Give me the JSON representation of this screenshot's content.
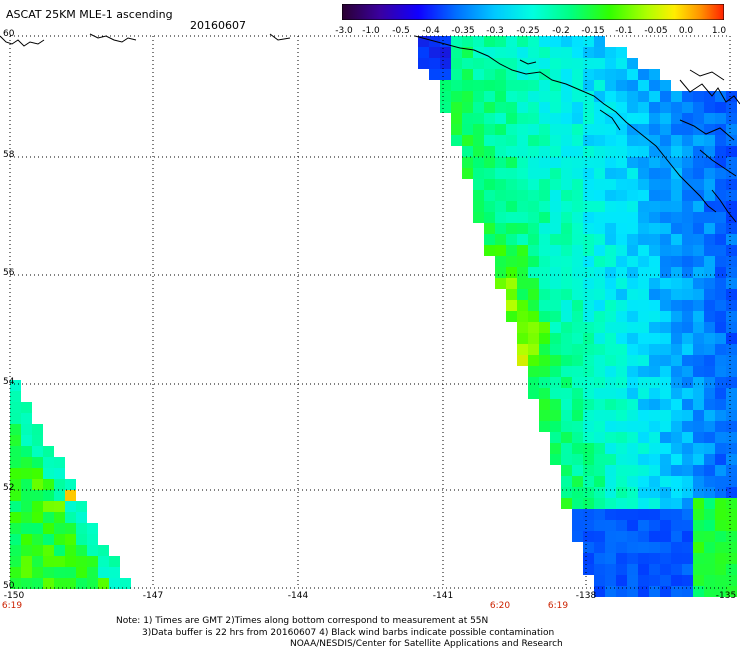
{
  "title": "ASCAT 25KM MLE-1 ascending",
  "date": "20160607",
  "colorbar": {
    "labels": [
      "-3.0",
      "-1.0",
      "-0.5",
      "-0.4",
      "-0.35",
      "-0.3",
      "-0.25",
      "-0.2",
      "-0.15",
      "-0.1",
      "-0.05",
      "0.0",
      "1.0"
    ],
    "colors": [
      "#3a0a3a",
      "#2a0090",
      "#1000ff",
      "#0048ff",
      "#0090ff",
      "#00d8ff",
      "#00ffd0",
      "#00ff70",
      "#40ff00",
      "#b0ff00",
      "#ffee00",
      "#ff9000",
      "#ff2000"
    ]
  },
  "lat_labels": [
    "60",
    "58",
    "56",
    "54",
    "52",
    "50"
  ],
  "lon_labels": [
    "-150",
    "-147",
    "-144",
    "-141",
    "-138",
    "-135"
  ],
  "time_labels": [
    "6:19",
    "6:20",
    "6:19"
  ],
  "notes": [
    "Note: 1) Times are GMT 2)Times along bottom correspond to measurement at 55N",
    "3)Data buffer is 22 hrs from 20160607 4) Black wind barbs indicate possible contamination",
    "NOAA/NESDIS/Center for Satellite Applications and Research"
  ],
  "colors": {
    "coast": "#000000",
    "grid": "#000000",
    "time_label": "#cc2200"
  }
}
